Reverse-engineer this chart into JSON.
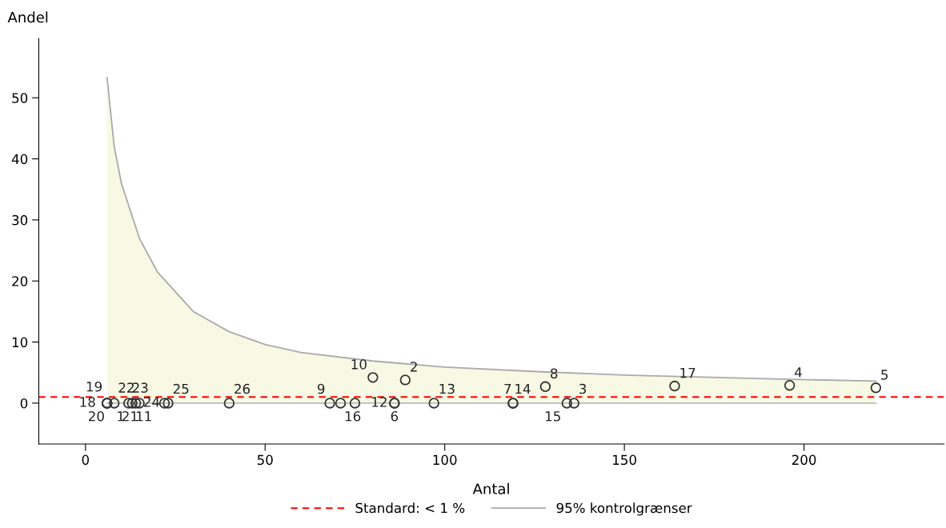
{
  "chart_data": {
    "type": "scatter",
    "xlabel": "Antal",
    "ylabel": "Andel",
    "xlim": [
      -13,
      239
    ],
    "ylim": [
      -6.7,
      59.7
    ],
    "xticks": [
      0,
      50,
      100,
      150,
      200
    ],
    "yticks": [
      0,
      10,
      20,
      30,
      40,
      50
    ],
    "grid": false,
    "legend": "bottom",
    "ref_lines": [
      {
        "axis": "y",
        "value": 1,
        "label": "Standard: < 1 %",
        "color": "#ff0000",
        "line_style": "dashed"
      }
    ],
    "series": [
      {
        "type": "line",
        "name": "95% kontrolgrænser",
        "color": "#aaaaaa",
        "x": [
          6,
          8,
          10,
          15,
          20,
          30,
          40,
          50,
          60,
          80,
          100,
          128,
          150,
          196,
          220
        ],
        "values": [
          53.3,
          42,
          36,
          27,
          21.5,
          15,
          11.7,
          9.6,
          8.3,
          6.9,
          5.9,
          5.1,
          4.6,
          3.9,
          3.6
        ],
        "lower": [
          0,
          0,
          0,
          0,
          0,
          0,
          0,
          0,
          0,
          0,
          0,
          0,
          0,
          0,
          0
        ],
        "upper": [
          53.3,
          42,
          36,
          27,
          21.5,
          15,
          11.7,
          9.6,
          8.3,
          6.9,
          5.9,
          5.1,
          4.6,
          3.9,
          3.6
        ]
      },
      {
        "type": "line",
        "color": "#bbbbbb",
        "x": [
          6,
          220
        ],
        "values": [
          0,
          0
        ]
      },
      {
        "color": "#333333",
        "marker": "circle",
        "x": [
          6,
          6,
          6,
          8,
          12,
          13,
          14,
          15,
          22,
          23,
          40,
          68,
          71,
          75,
          80,
          86,
          86,
          89,
          97,
          119,
          119,
          128,
          134,
          136,
          164,
          196,
          220
        ],
        "values": [
          0,
          0,
          0,
          0,
          0,
          0,
          0,
          0,
          0,
          0,
          0,
          0,
          0,
          0,
          4.2,
          0,
          0,
          3.8,
          0,
          0,
          0,
          2.7,
          0,
          0,
          2.8,
          2.9,
          2.5
        ]
      }
    ],
    "annotations": [
      {
        "text": "18",
        "x": 6,
        "y": 0
      },
      {
        "text": "19",
        "x": 6,
        "y": 0
      },
      {
        "text": "20",
        "x": 6,
        "y": 0
      },
      {
        "text": "1",
        "x": 8,
        "y": 0
      },
      {
        "text": "22",
        "x": 12,
        "y": 0
      },
      {
        "text": "21",
        "x": 13,
        "y": 0
      },
      {
        "text": "23",
        "x": 14,
        "y": 0
      },
      {
        "text": "11",
        "x": 15,
        "y": 0
      },
      {
        "text": "24",
        "x": 22,
        "y": 0
      },
      {
        "text": "25",
        "x": 23,
        "y": 0
      },
      {
        "text": "26",
        "x": 40,
        "y": 0
      },
      {
        "text": "9",
        "x": 68,
        "y": 0
      },
      {
        "text": "16",
        "x": 75,
        "y": 0
      },
      {
        "text": "10",
        "x": 80,
        "y": 4.2
      },
      {
        "text": "12",
        "x": 86,
        "y": 0
      },
      {
        "text": "6",
        "x": 86,
        "y": 0
      },
      {
        "text": "2",
        "x": 89,
        "y": 3.8
      },
      {
        "text": "13",
        "x": 97,
        "y": 0
      },
      {
        "text": "7",
        "x": 119,
        "y": 0
      },
      {
        "text": "14",
        "x": 119,
        "y": 0
      },
      {
        "text": "8",
        "x": 128,
        "y": 2.7
      },
      {
        "text": "15",
        "x": 134,
        "y": 0
      },
      {
        "text": "3",
        "x": 136,
        "y": 0
      },
      {
        "text": "17",
        "x": 164,
        "y": 2.8
      },
      {
        "text": "4",
        "x": 196,
        "y": 2.9
      },
      {
        "text": "5",
        "x": 220,
        "y": 2.5
      }
    ]
  }
}
